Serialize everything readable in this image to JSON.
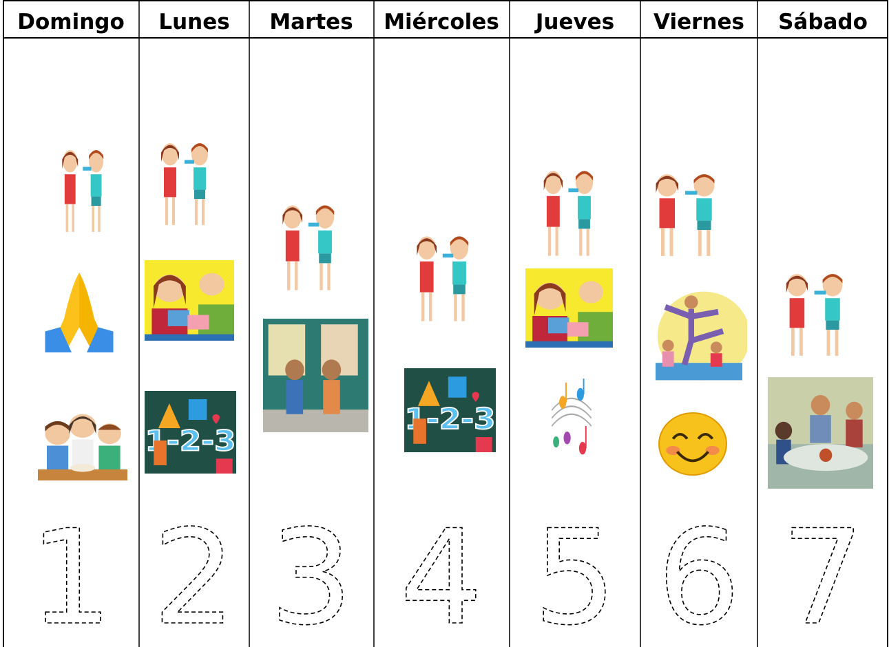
{
  "calendar": {
    "days": [
      "Domingo",
      "Lunes",
      "Martes",
      "Miércoles",
      "Jueves",
      "Viernes",
      "Sábado"
    ],
    "numbers": [
      1,
      2,
      3,
      4,
      5,
      6,
      7
    ]
  }
}
